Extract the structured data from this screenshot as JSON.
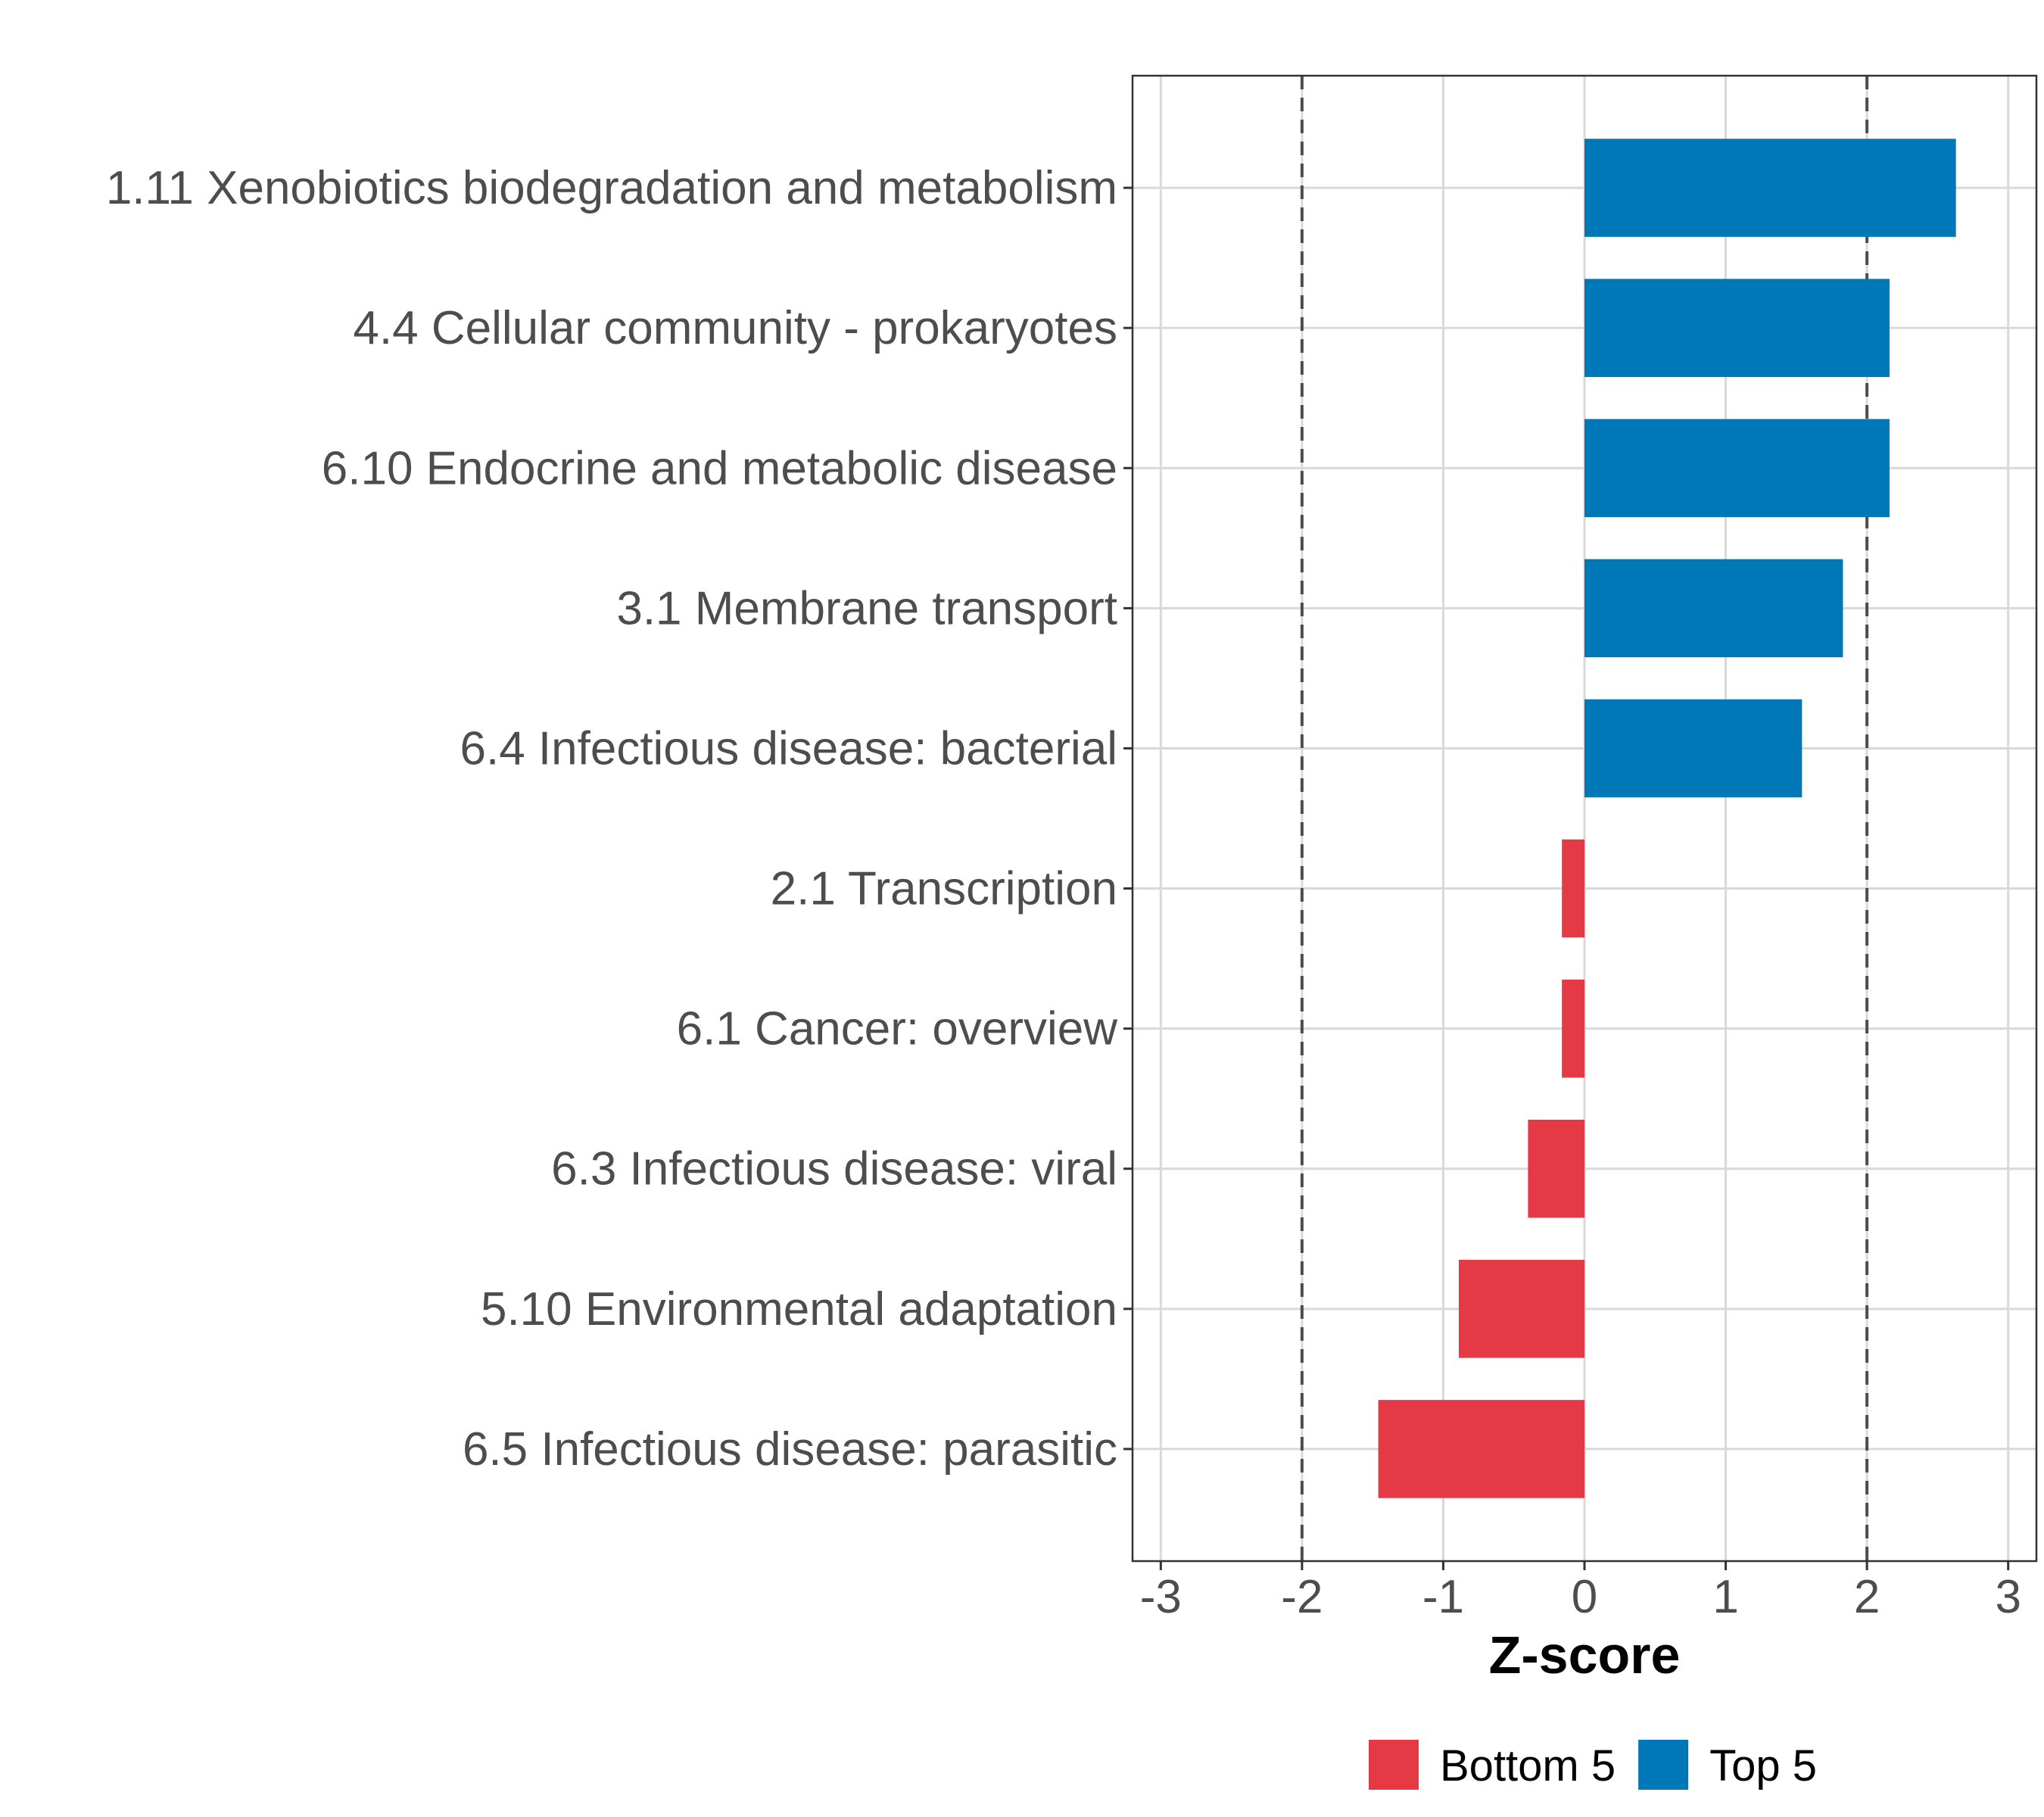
{
  "chart_data": {
    "type": "bar",
    "orientation": "horizontal",
    "title": "",
    "xlabel": "Z-score",
    "ylabel": "",
    "xlim": [
      -3.2,
      3.2
    ],
    "xticks": [
      -3,
      -2,
      -1,
      0,
      1,
      2,
      3
    ],
    "xtick_labels": [
      "-3",
      "-2",
      "-1",
      "0",
      "1",
      "2",
      "3"
    ],
    "reference_lines": [
      -2,
      2
    ],
    "grid": true,
    "categories": [
      "1.11 Xenobiotics biodegradation and metabolism",
      "4.4 Cellular community - prokaryotes",
      "6.10 Endocrine and metabolic disease",
      "3.1 Membrane transport",
      "6.4 Infectious disease: bacterial",
      "2.1 Transcription",
      "6.1 Cancer: overview",
      "6.3 Infectious disease: viral",
      "5.10 Environmental adaptation",
      "6.5 Infectious disease: parasitic"
    ],
    "values": [
      2.63,
      2.16,
      2.16,
      1.83,
      1.54,
      -0.16,
      -0.16,
      -0.4,
      -0.89,
      -1.46
    ],
    "groups": [
      "Top 5",
      "Top 5",
      "Top 5",
      "Top 5",
      "Top 5",
      "Bottom 5",
      "Bottom 5",
      "Bottom 5",
      "Bottom 5",
      "Bottom 5"
    ],
    "legend": {
      "position": "bottom",
      "entries": [
        {
          "name": "Bottom 5",
          "color": "#e63946"
        },
        {
          "name": "Top 5",
          "color": "#0077b6"
        }
      ]
    }
  }
}
